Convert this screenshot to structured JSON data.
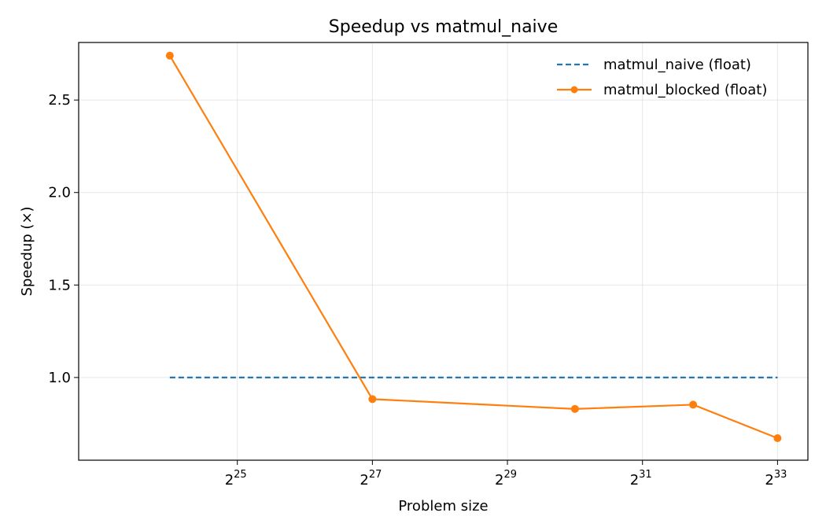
{
  "chart_data": {
    "type": "line",
    "title": "Speedup vs matmul_naive",
    "xlabel": "Problem size",
    "ylabel": "Speedup (×)",
    "x_scale": "log2",
    "xlim_log2": [
      22.65,
      33.45
    ],
    "ylim": [
      0.5529,
      2.8111
    ],
    "grid": true,
    "legend_position": "upper-right",
    "x_ticks": [
      {
        "base": "2",
        "exp": "25",
        "log2": 25
      },
      {
        "base": "2",
        "exp": "27",
        "log2": 27
      },
      {
        "base": "2",
        "exp": "29",
        "log2": 29
      },
      {
        "base": "2",
        "exp": "31",
        "log2": 31
      },
      {
        "base": "2",
        "exp": "33",
        "log2": 33
      }
    ],
    "y_ticks": [
      {
        "label": "1.0",
        "value": 1.0
      },
      {
        "label": "1.5",
        "value": 1.5
      },
      {
        "label": "2.0",
        "value": 2.0
      },
      {
        "label": "2.5",
        "value": 2.5
      }
    ],
    "series": [
      {
        "name": "matmul_naive (float)",
        "color": "#1f77b4",
        "style": "dashed",
        "markers": false,
        "x_log2": [
          24.0,
          33.0
        ],
        "y": [
          1.0,
          1.0
        ]
      },
      {
        "name": "matmul_blocked (float)",
        "color": "#ff7f0e",
        "style": "solid",
        "markers": true,
        "x_log2": [
          24.0,
          27.0,
          30.0,
          31.75,
          33.0
        ],
        "y": [
          2.74,
          0.883,
          0.83,
          0.853,
          0.672
        ]
      }
    ]
  }
}
